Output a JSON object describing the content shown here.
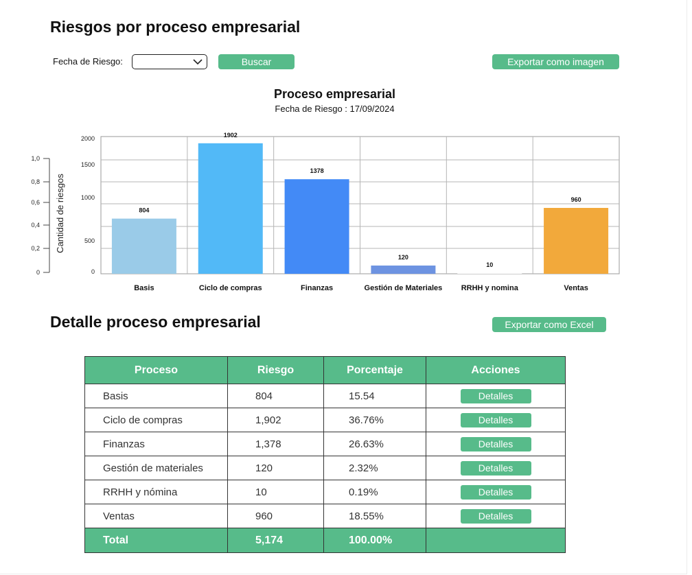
{
  "header": {
    "title": "Riesgos por proceso empresarial"
  },
  "filters": {
    "date_label": "Fecha de Riesgo:",
    "date_value": "",
    "search_label": "Buscar",
    "export_image_label": "Exportar como imagen"
  },
  "chart": {
    "title": "Proceso empresarial",
    "subtitle": "Fecha de Riesgo : 17/09/2024",
    "ylabel": "Cantidad de riesgos",
    "left_axis_ticks": [
      "1,0",
      "0,8",
      "0,6",
      "0,4",
      "0,2",
      "0"
    ],
    "right_axis_ticks": [
      "2000",
      "1500",
      "1000",
      "500",
      "0"
    ]
  },
  "chart_data": {
    "type": "bar",
    "title": "Proceso empresarial",
    "subtitle": "Fecha de Riesgo : 17/09/2024",
    "ylabel": "Cantidad de riesgos",
    "categories": [
      "Basis",
      "Ciclo de compras",
      "Finanzas",
      "Gestión de Materiales",
      "RRHH y nomina",
      "Ventas"
    ],
    "values": [
      804,
      1902,
      1378,
      120,
      10,
      960
    ],
    "colors": [
      "#9acbe8",
      "#52b9f7",
      "#438af6",
      "#6d93e1",
      "#ffffff",
      "#f2a93b"
    ],
    "ylim": [
      0,
      2000
    ],
    "grid": true
  },
  "detail": {
    "title": "Detalle proceso empresarial",
    "export_excel_label": "Exportar como Excel",
    "headers": [
      "Proceso",
      "Riesgo",
      "Porcentaje",
      "Acciones"
    ],
    "action_label": "Detalles",
    "rows": [
      {
        "proceso": "Basis",
        "riesgo": "804",
        "porcentaje": "15.54"
      },
      {
        "proceso": "Ciclo de compras",
        "riesgo": "1,902",
        "porcentaje": "36.76%"
      },
      {
        "proceso": "Finanzas",
        "riesgo": "1,378",
        "porcentaje": "26.63%"
      },
      {
        "proceso": "Gestión de materiales",
        "riesgo": "120",
        "porcentaje": "2.32%"
      },
      {
        "proceso": "RRHH y nómina",
        "riesgo": "10",
        "porcentaje": "0.19%"
      },
      {
        "proceso": "Ventas",
        "riesgo": "960",
        "porcentaje": "18.55%"
      }
    ],
    "total": {
      "label": "Total",
      "riesgo": "5,174",
      "porcentaje": "100.00%"
    }
  }
}
